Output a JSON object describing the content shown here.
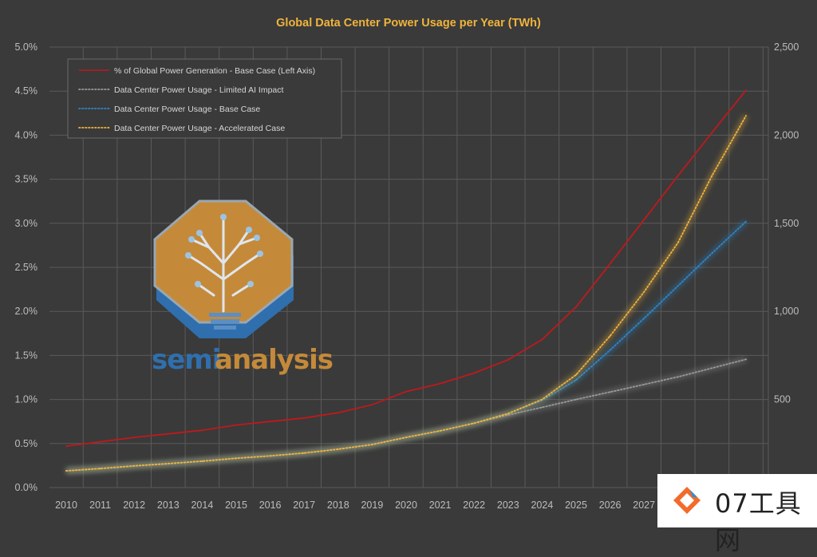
{
  "chart_data": {
    "type": "line",
    "title": "Global Data Center Power Usage per Year (TWh)",
    "x": [
      2010,
      2011,
      2012,
      2013,
      2014,
      2015,
      2016,
      2017,
      2018,
      2019,
      2020,
      2021,
      2022,
      2023,
      2024,
      2025,
      2026,
      2027,
      2028,
      2029,
      2030
    ],
    "x_tick_labels": [
      "2010",
      "2011",
      "2012",
      "2013",
      "2014",
      "2015",
      "2016",
      "2017",
      "2018",
      "2019",
      "2020",
      "2021",
      "2022",
      "2023",
      "2024",
      "2025",
      "2026",
      "2027"
    ],
    "left_axis": {
      "ylim": [
        0,
        0.05
      ],
      "tick_labels": [
        "0.0%",
        "0.5%",
        "1.0%",
        "1.5%",
        "2.0%",
        "2.5%",
        "3.0%",
        "3.5%",
        "4.0%",
        "4.5%",
        "5.0%"
      ]
    },
    "right_axis": {
      "ylim": [
        0,
        2500
      ],
      "tick_labels": [
        "500",
        "1,000",
        "1,500",
        "2,000",
        "2,500"
      ],
      "tick_values": [
        500,
        1000,
        1500,
        2000,
        2500
      ]
    },
    "grid": true,
    "legend_position": "top-left",
    "series": [
      {
        "name": "% of Global Power Generation - Base Case (Left Axis)",
        "axis": "left",
        "style": "solid",
        "color": "#c0191c",
        "values": [
          0.0047,
          0.0052,
          0.0057,
          0.0061,
          0.0065,
          0.0071,
          0.0075,
          0.0079,
          0.0085,
          0.0094,
          0.0109,
          0.0118,
          0.013,
          0.0145,
          0.0168,
          0.0205,
          0.0254,
          0.0304,
          0.0354,
          0.0403,
          0.0451
        ]
      },
      {
        "name": "Data Center Power Usage - Limited AI Impact",
        "axis": "right",
        "style": "dotted",
        "color": "#9a9a9a",
        "values": [
          95,
          108,
          123,
          136,
          150,
          166,
          180,
          196,
          218,
          244,
          285,
          322,
          365,
          412,
          455,
          500,
          542,
          585,
          628,
          678,
          728
        ]
      },
      {
        "name": "Data Center Power Usage - Base Case",
        "axis": "right",
        "style": "dotted",
        "color": "#2e86c8",
        "values": [
          95,
          108,
          123,
          136,
          150,
          166,
          180,
          196,
          218,
          244,
          285,
          322,
          365,
          420,
          495,
          610,
          780,
          960,
          1145,
          1330,
          1510
        ]
      },
      {
        "name": "Data Center Power Usage - Accelerated Case",
        "axis": "right",
        "style": "dotted",
        "color": "#f0b43c",
        "values": [
          95,
          108,
          123,
          136,
          150,
          166,
          180,
          196,
          218,
          244,
          285,
          322,
          365,
          420,
          500,
          640,
          860,
          1110,
          1390,
          1770,
          2110
        ]
      }
    ]
  },
  "colors": {
    "background": "#3a3a3a",
    "grid": "#5a5a5a",
    "title": "#f0b43c",
    "axis_text": "#bdbdbd",
    "legend_text": "#d6d6d6"
  },
  "logo": {
    "word_part1": "semi",
    "word_part2": "analysis",
    "icon": "brain-tree-lightbulb-icon"
  },
  "watermark": {
    "text": "07工具网",
    "icon": "orange-diamond-icon"
  }
}
